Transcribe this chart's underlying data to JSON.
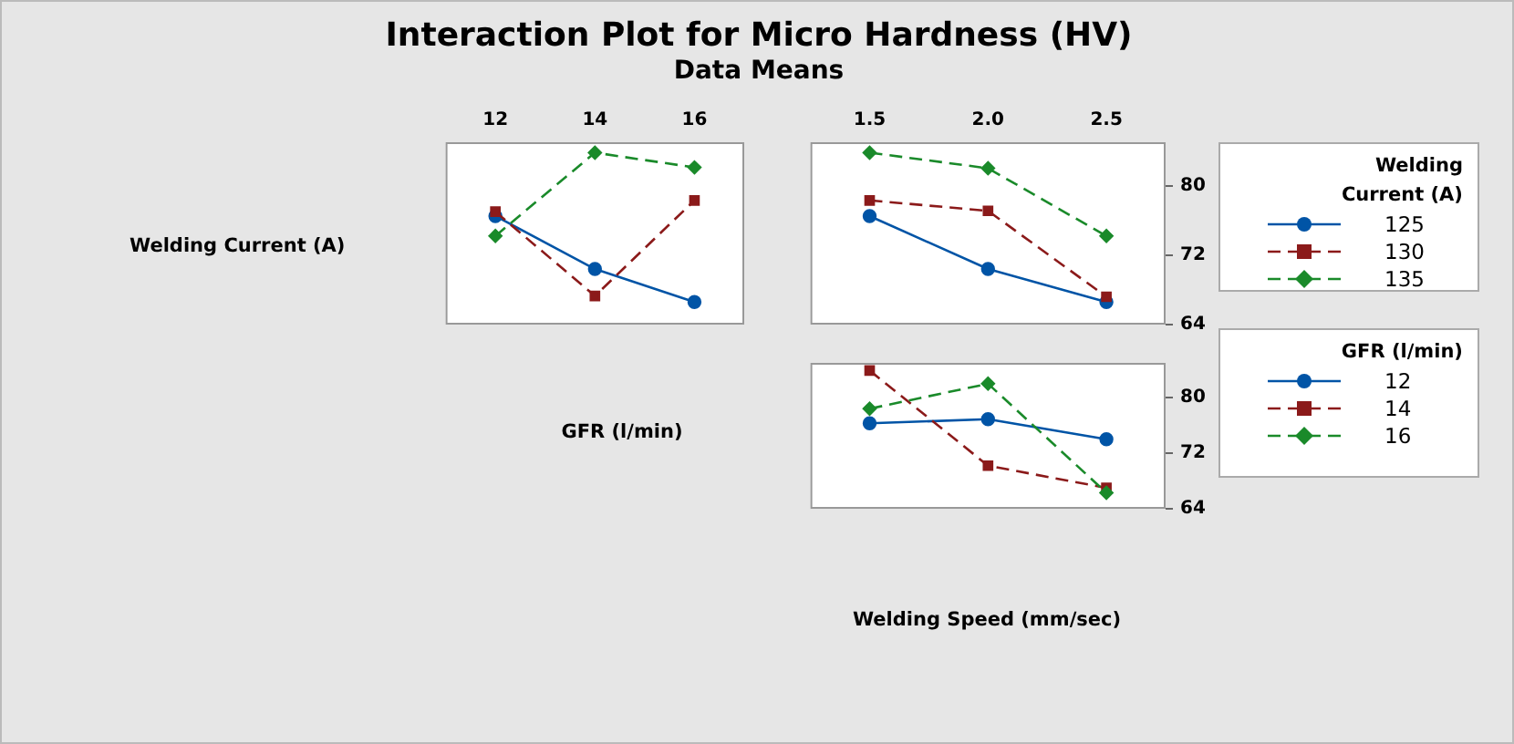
{
  "chart_data": [
    {
      "type": "line",
      "title": "Interaction Plot for Micro Hardness (HV)",
      "subtitle": "Data Means",
      "ylabel": "Welding  Current (A)",
      "xlabel": "GFR (l/min)",
      "x": [
        12,
        14,
        16
      ],
      "xlim": [
        11,
        17
      ],
      "xticks": [
        12,
        14,
        16
      ],
      "ylim": [
        64,
        85
      ],
      "tick_labels": "x",
      "grid": false,
      "legend": false,
      "series": [
        {
          "color": "#0054a6",
          "marker": "circle",
          "line_style": "solid",
          "values": [
            76.5,
            70.4,
            66.6
          ]
        },
        {
          "color": "#8b1a1a",
          "marker": "square",
          "line_style": "dashed",
          "values": [
            77.0,
            67.3,
            78.3
          ]
        },
        {
          "color": "#1a8a2a",
          "marker": "diamond",
          "line_style": "dashed",
          "values": [
            74.2,
            83.8,
            82.1
          ]
        }
      ]
    },
    {
      "type": "line",
      "legend_title": "Welding Current (A)",
      "x": [
        1.5,
        2.0,
        2.5
      ],
      "xlim": [
        1.25,
        2.75
      ],
      "xticks": [
        1.5,
        {
          "value": 2.0,
          "label": "2.0"
        },
        2.5
      ],
      "ylim": [
        64,
        85
      ],
      "yticks": [
        64,
        72,
        80
      ],
      "grid": false,
      "legend": "right",
      "series": [
        {
          "name": "125",
          "color": "#0054a6",
          "marker": "circle",
          "line_style": "solid",
          "values": [
            76.5,
            70.4,
            66.6
          ]
        },
        {
          "name": "130",
          "color": "#8b1a1a",
          "marker": "square",
          "line_style": "dashed",
          "values": [
            78.3,
            77.1,
            67.2
          ]
        },
        {
          "name": "135",
          "color": "#1a8a2a",
          "marker": "diamond",
          "line_style": "dashed",
          "values": [
            83.8,
            82.0,
            74.2
          ]
        }
      ]
    },
    {
      "type": "line",
      "xlabel": "Welding Speed (mm/sec)",
      "legend_title": "GFR (l/min)",
      "x": [
        1.5,
        2.0,
        2.5
      ],
      "xlim": [
        1.25,
        2.75
      ],
      "ylim": [
        64,
        85
      ],
      "yticks": [
        64,
        72,
        80
      ],
      "tick_labels": "y",
      "grid": false,
      "legend": "right",
      "series": [
        {
          "name": "12",
          "color": "#0054a6",
          "marker": "circle",
          "line_style": "solid",
          "values": [
            76.3,
            76.9,
            74.0
          ]
        },
        {
          "name": "14",
          "color": "#8b1a1a",
          "marker": "square",
          "line_style": "dashed",
          "values": [
            83.9,
            70.2,
            67.0
          ]
        },
        {
          "name": "16",
          "color": "#1a8a2a",
          "marker": "diamond",
          "line_style": "dashed",
          "values": [
            78.4,
            82.0,
            66.3
          ]
        }
      ]
    }
  ]
}
